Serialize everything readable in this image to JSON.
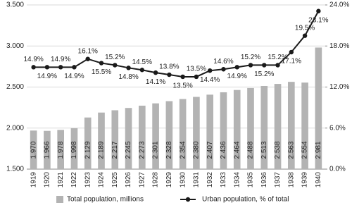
{
  "chart_data": {
    "type": "bar-line",
    "categories": [
      "1919",
      "1920",
      "1921",
      "1922",
      "1923",
      "1924",
      "1925",
      "1926",
      "1927",
      "1928",
      "1929",
      "1930",
      "1931",
      "1932",
      "1933",
      "1934",
      "1935",
      "1936",
      "1937",
      "1938",
      "1939",
      "1940"
    ],
    "series": [
      {
        "name": "Total population, millions",
        "type": "bar",
        "color": "#b3b3b3",
        "values": [
          1.97,
          1.966,
          1.978,
          1.998,
          2.129,
          2.189,
          2.217,
          2.245,
          2.273,
          2.301,
          2.328,
          2.354,
          2.38,
          2.407,
          2.436,
          2.464,
          2.488,
          2.513,
          2.538,
          2.563,
          2.554,
          2.981
        ],
        "value_labels": [
          "1.970",
          "1.966",
          "1.978",
          "1.998",
          "2.129",
          "2.189",
          "2.217",
          "2.245",
          "2.273",
          "2.301",
          "2.328",
          "2.354",
          "2.380",
          "2.407",
          "2.436",
          "2.464",
          "2.488",
          "2.513",
          "2.538",
          "2.563",
          "2.554",
          "2.981"
        ]
      },
      {
        "name": "Urban population, % of total",
        "type": "line",
        "axis": "y2",
        "color": "#1a1a1a",
        "values": [
          14.9,
          14.9,
          14.9,
          14.9,
          16.1,
          15.5,
          15.2,
          14.8,
          14.5,
          14.1,
          13.8,
          13.5,
          13.5,
          14.4,
          14.6,
          14.9,
          15.2,
          15.2,
          15.2,
          17.1,
          19.5,
          23.1
        ],
        "value_labels": [
          "14.9%",
          "14.9%",
          "14.9%",
          "14.9%",
          "16.1%",
          "15.5%",
          "15.2%",
          "14.8%",
          "14.5%",
          "14.1%",
          "13.8%",
          "13.5%",
          "13.5%",
          "14.4%",
          "14.6%",
          "14.9%",
          "15.2%",
          "15.2%",
          "15.2%",
          "17.1%",
          "19.5%",
          "23.1%"
        ]
      }
    ],
    "ylim": [
      1.5,
      3.5
    ],
    "yticks": [
      {
        "value": 1.5,
        "label": "1.500"
      },
      {
        "value": 2,
        "label": "2.000"
      },
      {
        "value": 2.5,
        "label": "2.500"
      },
      {
        "value": 3,
        "label": "3.000"
      },
      {
        "value": 3.5,
        "label": "3.500"
      }
    ],
    "y2lim": [
      0,
      24
    ],
    "y2ticks": [
      {
        "value": 0,
        "label": "0.0%"
      },
      {
        "value": 6,
        "label": "6.0%"
      },
      {
        "value": 12,
        "label": "12.0%"
      },
      {
        "value": 18,
        "label": "18.0%"
      },
      {
        "value": 24,
        "label": "24.0%"
      }
    ],
    "grid": true,
    "legend": "bottom"
  }
}
